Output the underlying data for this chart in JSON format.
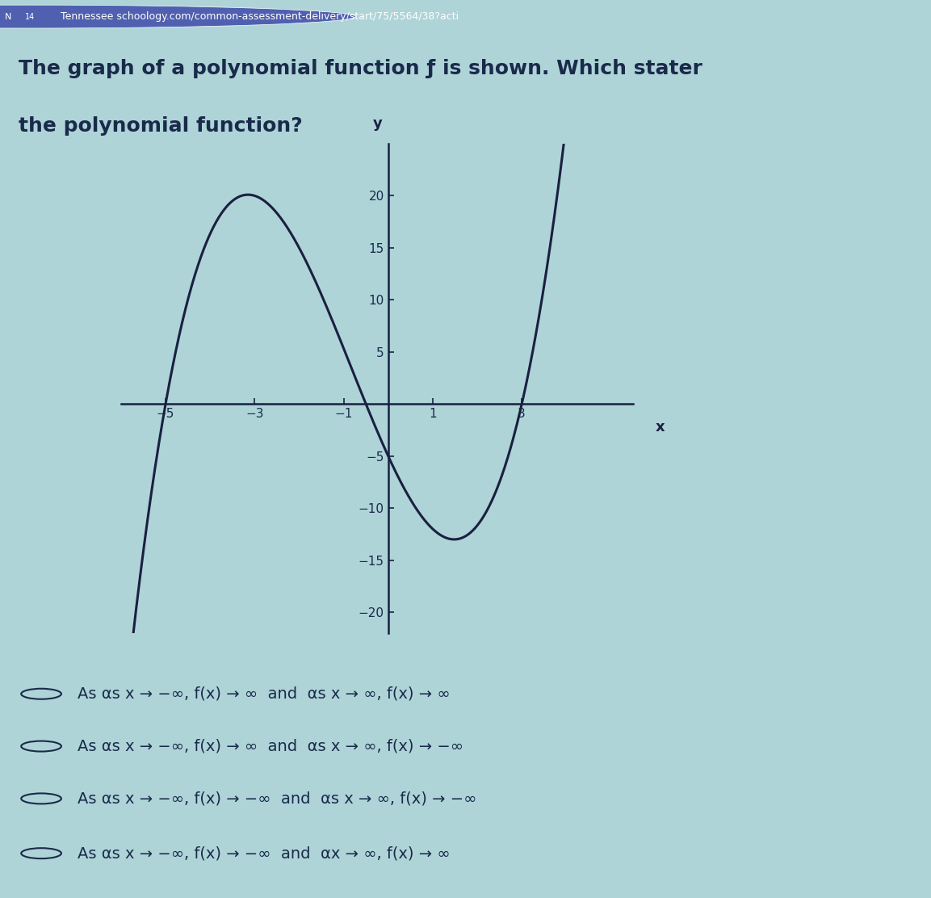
{
  "bg_color": "#aed4d8",
  "header_bg": "#2d3480",
  "header_text": "Tennessee schoology.com/common-assessment-delivery/start/75/5564/38?acti",
  "title_line1": "The graph of a polynomial function ƒ is shown. Which stater",
  "title_line2": "the polynomial function?",
  "graph_xlim": [
    -6.0,
    5.5
  ],
  "graph_ylim": [
    -22,
    25
  ],
  "x_ticks": [
    -5,
    -3,
    -1,
    1,
    3
  ],
  "y_ticks": [
    -20,
    -15,
    -10,
    -5,
    5,
    10,
    15,
    20
  ],
  "curve_color": "#1a2040",
  "axis_color": "#1a2040",
  "text_color": "#1a2a4a",
  "choice_A": "As αs x → −∞, f(x) → ∞  and  αs x → ∞, f(x) → ∞",
  "choice_B": "As αs x → −∞, f(x) → ∞  and  αs x → ∞, f(x) → −∞",
  "choice_C": "As αs x → −∞, f(x) → −∞  and  αs x → ∞, f(x) → −∞",
  "choice_D": "As αs x → −∞, f(x) → −∞  and  αx → ∞, f(x) → ∞",
  "choice_fontsize": 14,
  "title_fontsize": 18,
  "header_fontsize": 9
}
